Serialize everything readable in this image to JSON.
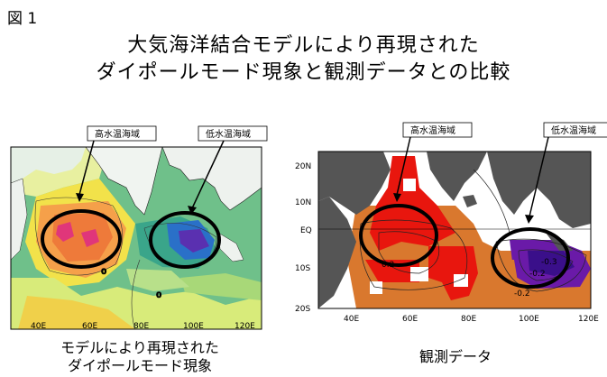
{
  "figure_label": "図 1",
  "title": {
    "line1": "大気海洋結合モデルにより再現された",
    "line2": "ダイポールモード現象と観測データとの比較"
  },
  "left_panel": {
    "caption_line1": "モデルにより再現された",
    "caption_line2": "ダイポールモード現象",
    "annotation_high": "高水温海域",
    "annotation_low": "低水温海域",
    "x_ticks": [
      "40E",
      "60E",
      "80E",
      "100E",
      "120E"
    ],
    "contour_labels": [
      "0",
      "0"
    ]
  },
  "right_panel": {
    "caption": "観測データ",
    "annotation_high": "高水温海域",
    "annotation_low": "低水温海域",
    "x_ticks": [
      "40E",
      "60E",
      "80E",
      "100E",
      "120E"
    ],
    "y_ticks": [
      "20N",
      "10N",
      "EQ",
      "10S",
      "20S"
    ],
    "contour_labels": [
      "0.2",
      "-0.2",
      "-0.3",
      "-0.2"
    ]
  }
}
